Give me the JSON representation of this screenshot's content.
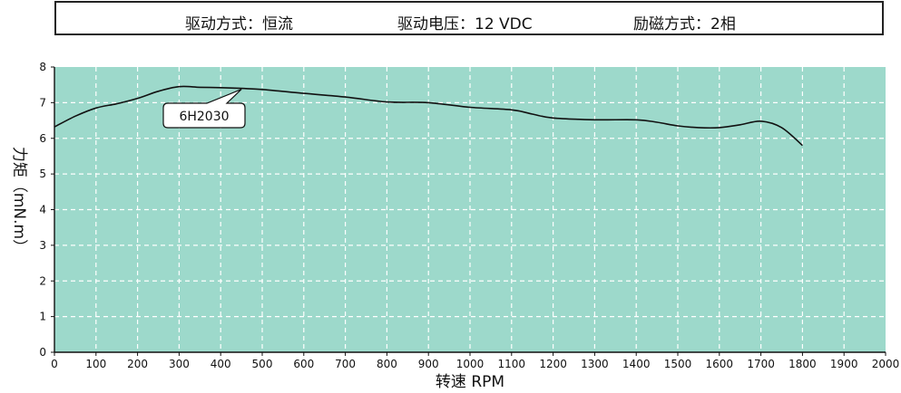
{
  "header": {
    "drive_mode": "驱动方式：恒流",
    "drive_voltage": "驱动电压：12 VDC",
    "excitation": "励磁方式：2相"
  },
  "colors": {
    "plot_bg": "#9dd9cb",
    "grid": "#ffffff",
    "curve": "#111111"
  },
  "chart_data": {
    "type": "line",
    "xlabel": "转速 RPM",
    "ylabel": "力矩（mN.m）",
    "xlim": [
      0,
      2000
    ],
    "ylim": [
      0,
      8
    ],
    "x_ticks": [
      0,
      100,
      200,
      300,
      400,
      500,
      600,
      700,
      800,
      900,
      1000,
      1100,
      1200,
      1300,
      1400,
      1500,
      1600,
      1700,
      1800,
      1900,
      2000
    ],
    "y_ticks": [
      0,
      1,
      2,
      3,
      4,
      5,
      6,
      7,
      8
    ],
    "grid": true,
    "series": [
      {
        "name": "6H2030",
        "x": [
          0,
          50,
          100,
          150,
          200,
          250,
          300,
          350,
          400,
          450,
          500,
          600,
          700,
          800,
          900,
          1000,
          1100,
          1150,
          1200,
          1300,
          1400,
          1450,
          1500,
          1550,
          1600,
          1650,
          1700,
          1750,
          1800
        ],
        "y": [
          6.32,
          6.62,
          6.85,
          6.97,
          7.12,
          7.32,
          7.45,
          7.43,
          7.42,
          7.4,
          7.37,
          7.26,
          7.16,
          7.02,
          7.0,
          6.87,
          6.8,
          6.68,
          6.57,
          6.52,
          6.52,
          6.45,
          6.35,
          6.3,
          6.3,
          6.38,
          6.48,
          6.3,
          5.8
        ]
      }
    ],
    "annotations": [
      {
        "text": "6H2030",
        "points_to_x": 450,
        "points_to_y": 7.4
      }
    ]
  }
}
